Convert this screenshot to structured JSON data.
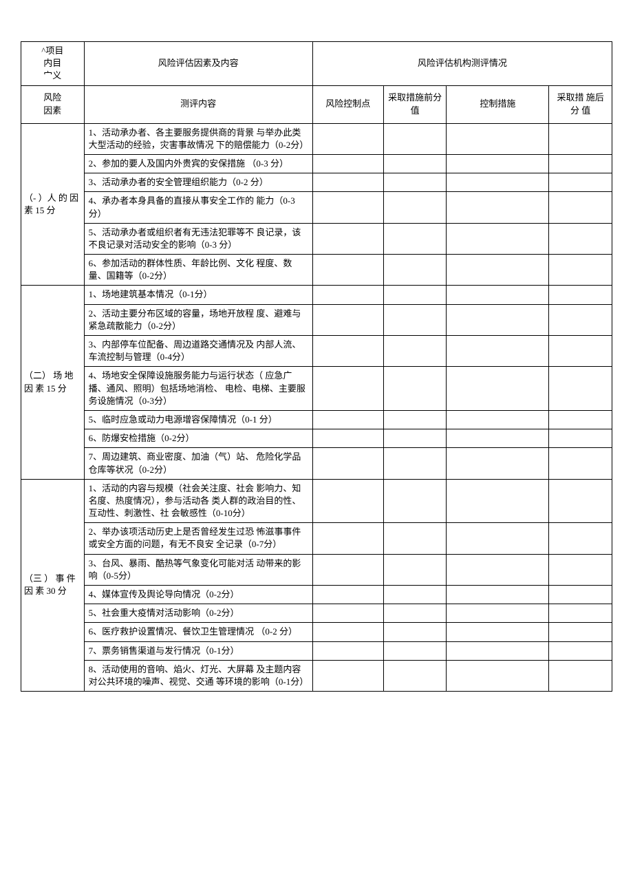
{
  "headers": {
    "topLeft": "^项目\n内目\n宀义",
    "factorsHeader": "风险评估因素及内容",
    "evalHeader": "风险评估机构测评情况",
    "riskFactor": "风险\n因素",
    "contentHeader": "测评内容",
    "ctrlPoint": "风险控制点",
    "beforeScore": "采取措施前分值",
    "measures": "控制措施",
    "afterScore": "采取措 施后分  值"
  },
  "sections": [
    {
      "label": "（- ）人   的 因        素 15 分",
      "items": [
        "1、活动承办者、各主要服务提供商的背景  与举办此类大型活动的经验，灾害事故情况  下的赔偿能力（0-2分）",
        "2、参加的要人及国内外贵宾的安保措施 （0-3 分）",
        "3、活动承办者的安全管理组织能力（0-2 分）",
        "4、承办者本身具备的直接从事安全工作的  能力（0-3分）",
        "5、活动承办者或组织者有无违法犯罪等不  良记录，该不良记录对活动安全的影响（0-3 分）",
        "6、参加活动的群体性质、年龄比例、文化  程度、数量、国籍等（0-2分）"
      ]
    },
    {
      "label": "（二） 场      地 因      素 15 分",
      "items": [
        "1、场地建筑基本情况（0-1分）",
        "2、活动主要分布区域的容量，场地开放程  度、避难与紧急疏散能力（0-2分）",
        "3、内部停车位配备、周边道路交通情况及  内部人流、车流控制与管理（0-4分）",
        "4、场地安全保障设施服务能力与运行状态（ 应急广播、通风、照明）包括场地消检、     电检、电梯、主要服务设施情况（0-3分）",
        "5、临时应急或动力电源增容保障情况（0-1 分）",
        "6、防爆安检措施（0-2分）",
        "7、周边建筑、商业密度、加油（气）站、    危险化学品仓库等状况（0-2分）"
      ]
    },
    {
      "label": "（三 ） 事        件 因        素 30 分",
      "items": [
        "1、活动的内容与规模（社会关注度、社会  影响力、知名度、热度情况），参与活动各  类人群的政治目的性、互动性、刺激性、社  会敏感性（0-10分）",
        "2、举办该项活动历史上是否曾经发生过恐  怖滋事事件或安全方面的问题，有无不良安  全记录（0-7分）",
        "3、台风、暴雨、酷热等气象变化可能对活  动带来的影响（0-5分）",
        "4、媒体宣传及舆论导向情况（0-2分）",
        "5、社会重大疫情对活动影响（0-2分）",
        "6、医疗救护设置情况、餐饮卫生管理情况   （0-2 分）",
        "7、票务销售渠道与发行情况（0-1分）",
        "8、活动使用的音响、焰火、灯光、大屏幕  及主题内容对公共环境的噪声、视觉、交通  等环境的影响（0-1分）"
      ]
    }
  ]
}
